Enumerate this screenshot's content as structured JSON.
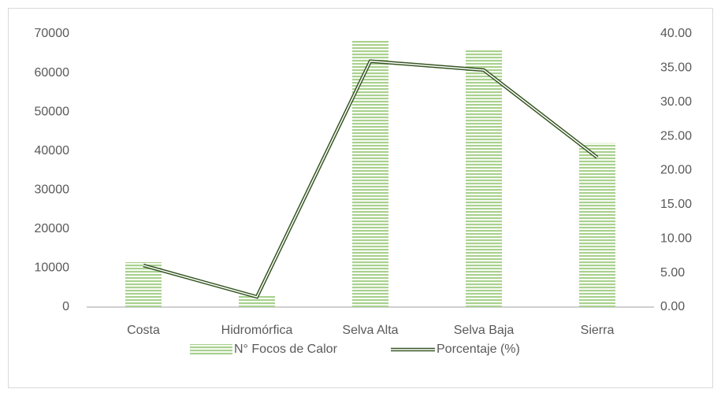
{
  "chart_data": {
    "type": "bar_line",
    "categories": [
      "Costa",
      "Hidromórfica",
      "Selva Alta",
      "Selva Baja",
      "Sierra"
    ],
    "series": [
      {
        "name": "N° Focos de Calor",
        "color": "#a9d18e",
        "values": [
          11500,
          3000,
          68500,
          66000,
          42000
        ]
      },
      {
        "name": "Porcentaje (%)",
        "color": "#375623",
        "axis": "y2",
        "values": [
          6.1,
          1.5,
          36.0,
          34.7,
          21.9
        ]
      }
    ],
    "ylim": [
      0,
      70000
    ],
    "yticks": [
      0,
      10000,
      20000,
      30000,
      40000,
      50000,
      60000,
      70000
    ],
    "y2lim": [
      0,
      40
    ],
    "y2ticks": [
      {
        "value": 0,
        "label": "0.00"
      },
      {
        "value": 5,
        "label": "5.00"
      },
      {
        "value": 10,
        "label": "10.00"
      },
      {
        "value": 15,
        "label": "15.00"
      },
      {
        "value": 20,
        "label": "20.00"
      },
      {
        "value": 25,
        "label": "25.00"
      },
      {
        "value": 30,
        "label": "30.00"
      },
      {
        "value": 35,
        "label": "35.00"
      },
      {
        "value": 40,
        "label": "40.00"
      }
    ],
    "legend": "bottom"
  }
}
